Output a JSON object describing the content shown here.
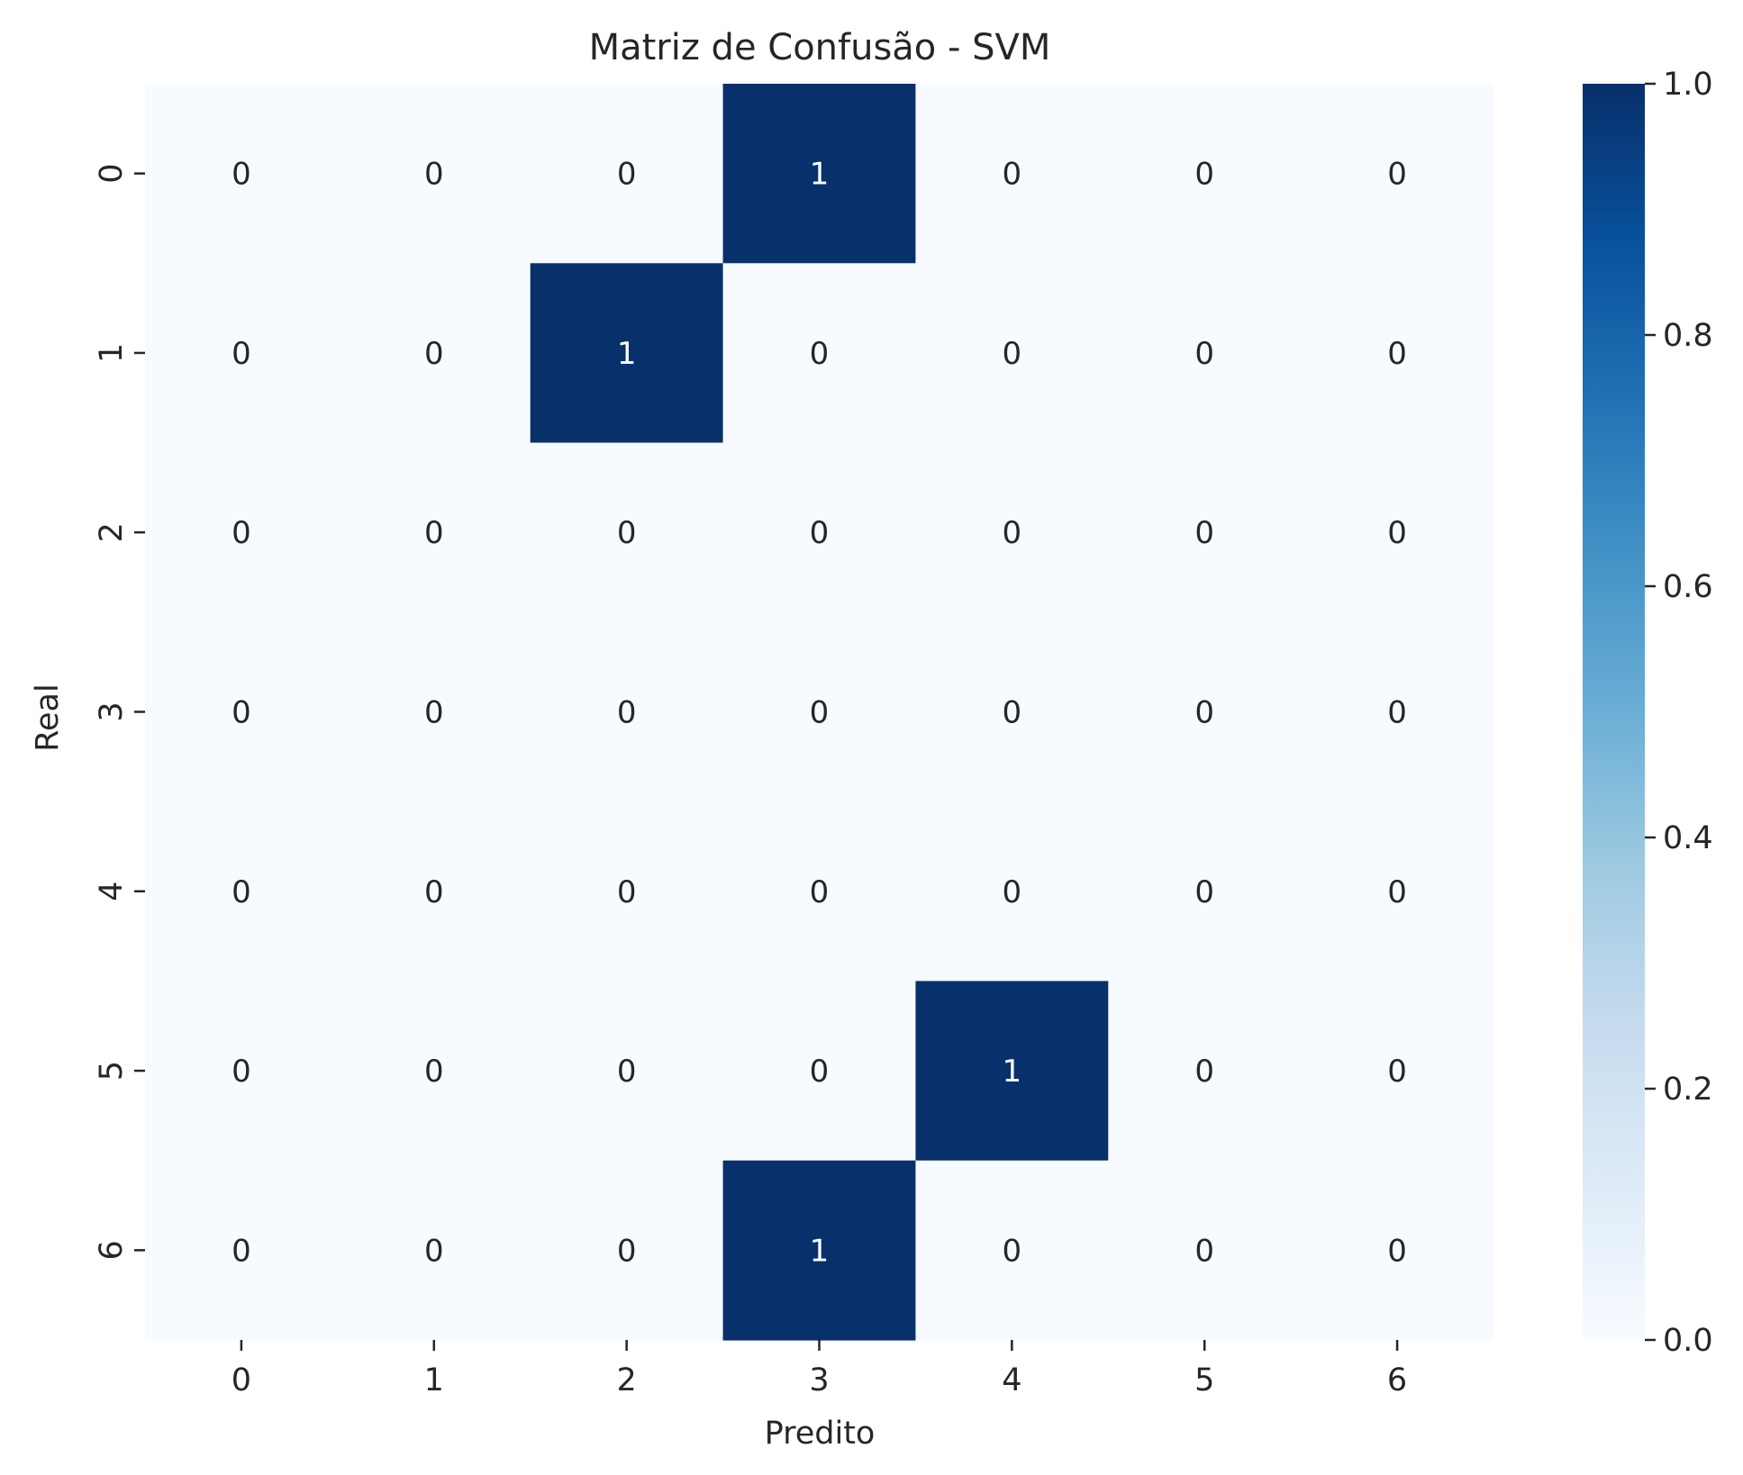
{
  "chart_data": {
    "type": "heatmap",
    "title": "Matriz de Confusão - SVM",
    "xlabel": "Predito",
    "ylabel": "Real",
    "x_categories": [
      "0",
      "1",
      "2",
      "3",
      "4",
      "5",
      "6"
    ],
    "y_categories": [
      "0",
      "1",
      "2",
      "3",
      "4",
      "5",
      "6"
    ],
    "values": [
      [
        0,
        0,
        0,
        1,
        0,
        0,
        0
      ],
      [
        0,
        0,
        1,
        0,
        0,
        0,
        0
      ],
      [
        0,
        0,
        0,
        0,
        0,
        0,
        0
      ],
      [
        0,
        0,
        0,
        0,
        0,
        0,
        0
      ],
      [
        0,
        0,
        0,
        0,
        0,
        0,
        0
      ],
      [
        0,
        0,
        0,
        0,
        1,
        0,
        0
      ],
      [
        0,
        0,
        0,
        1,
        0,
        0,
        0
      ]
    ],
    "colorbar": {
      "colormap": "Blues",
      "range": [
        0,
        1
      ],
      "ticks": [
        "0.0",
        "0.2",
        "0.4",
        "0.6",
        "0.8",
        "1.0"
      ]
    },
    "colors": {
      "low": "#f7fbff",
      "high": "#08306b",
      "text_on_low": "#262626",
      "text_on_high": "#ffffff"
    },
    "grid": false,
    "annotations": true
  }
}
